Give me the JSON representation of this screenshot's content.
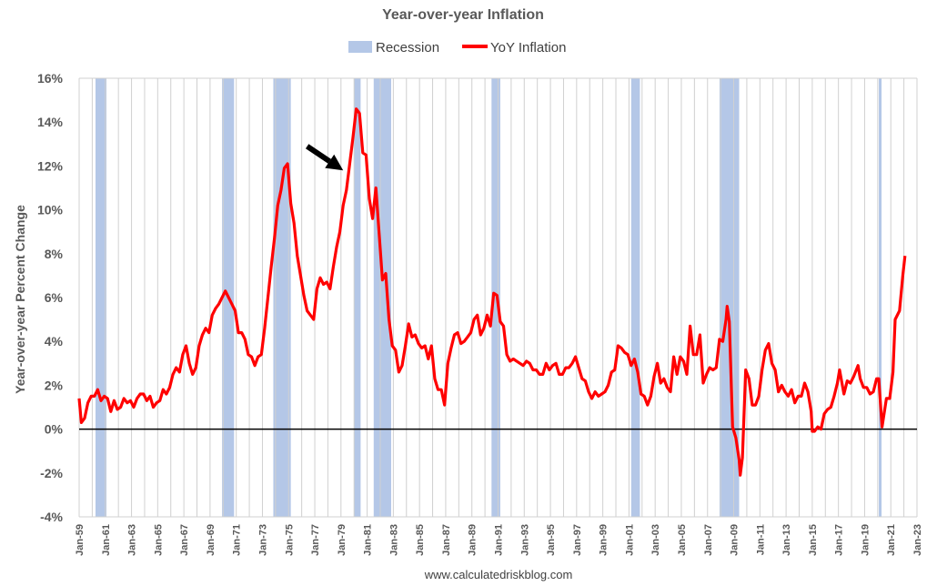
{
  "chart_data": {
    "type": "line",
    "title": "Year-over-year Inflation",
    "ylabel": "Year-over-year Percent Change",
    "xlabel": "",
    "source": "www.calculatedriskblog.com",
    "ylim": [
      -4,
      16
    ],
    "xlim": [
      "1959-01",
      "2023-01"
    ],
    "grid": "vertical-yearly",
    "legend_placement": "top-center",
    "y_ticks": [
      "-4%",
      "-2%",
      "0%",
      "2%",
      "4%",
      "6%",
      "8%",
      "10%",
      "12%",
      "14%",
      "16%"
    ],
    "x_ticks": [
      "Jan-59",
      "Jan-61",
      "Jan-63",
      "Jan-65",
      "Jan-67",
      "Jan-69",
      "Jan-71",
      "Jan-73",
      "Jan-75",
      "Jan-77",
      "Jan-79",
      "Jan-81",
      "Jan-83",
      "Jan-85",
      "Jan-87",
      "Jan-89",
      "Jan-91",
      "Jan-93",
      "Jan-95",
      "Jan-97",
      "Jan-99",
      "Jan-01",
      "Jan-03",
      "Jan-05",
      "Jan-07",
      "Jan-09",
      "Jan-11",
      "Jan-13",
      "Jan-15",
      "Jan-17",
      "Jan-19",
      "Jan-21",
      "Jan-23"
    ],
    "legend": [
      {
        "name": "Recession",
        "color": "#b4c7e7"
      },
      {
        "name": "YoY Inflation",
        "color": "#ff0000"
      }
    ],
    "recessions": [
      {
        "start": "1960-04",
        "end": "1961-02"
      },
      {
        "start": "1969-12",
        "end": "1970-11"
      },
      {
        "start": "1973-11",
        "end": "1975-03"
      },
      {
        "start": "1980-01",
        "end": "1980-07"
      },
      {
        "start": "1981-07",
        "end": "1982-11"
      },
      {
        "start": "1990-07",
        "end": "1991-03"
      },
      {
        "start": "2001-03",
        "end": "2001-11"
      },
      {
        "start": "2007-12",
        "end": "2009-06"
      },
      {
        "start": "2020-02",
        "end": "2020-04"
      }
    ],
    "series": [
      {
        "name": "YoY Inflation",
        "color": "#ff0000",
        "points": [
          [
            "1959-01",
            1.4
          ],
          [
            "1959-03",
            0.3
          ],
          [
            "1959-06",
            0.5
          ],
          [
            "1959-09",
            1.2
          ],
          [
            "1959-12",
            1.5
          ],
          [
            "1960-03",
            1.5
          ],
          [
            "1960-06",
            1.8
          ],
          [
            "1960-09",
            1.3
          ],
          [
            "1960-12",
            1.5
          ],
          [
            "1961-03",
            1.4
          ],
          [
            "1961-06",
            0.8
          ],
          [
            "1961-09",
            1.3
          ],
          [
            "1961-12",
            0.9
          ],
          [
            "1962-03",
            1.0
          ],
          [
            "1962-06",
            1.4
          ],
          [
            "1962-09",
            1.2
          ],
          [
            "1962-12",
            1.3
          ],
          [
            "1963-03",
            1.0
          ],
          [
            "1963-06",
            1.4
          ],
          [
            "1963-09",
            1.6
          ],
          [
            "1963-12",
            1.6
          ],
          [
            "1964-03",
            1.3
          ],
          [
            "1964-06",
            1.5
          ],
          [
            "1964-09",
            1.0
          ],
          [
            "1964-12",
            1.2
          ],
          [
            "1965-03",
            1.3
          ],
          [
            "1965-06",
            1.8
          ],
          [
            "1965-09",
            1.6
          ],
          [
            "1965-12",
            1.9
          ],
          [
            "1966-03",
            2.5
          ],
          [
            "1966-06",
            2.8
          ],
          [
            "1966-09",
            2.6
          ],
          [
            "1966-12",
            3.4
          ],
          [
            "1967-03",
            3.8
          ],
          [
            "1967-06",
            3.0
          ],
          [
            "1967-09",
            2.5
          ],
          [
            "1967-12",
            2.8
          ],
          [
            "1968-03",
            3.8
          ],
          [
            "1968-06",
            4.3
          ],
          [
            "1968-09",
            4.6
          ],
          [
            "1968-12",
            4.4
          ],
          [
            "1969-03",
            5.2
          ],
          [
            "1969-06",
            5.5
          ],
          [
            "1969-09",
            5.7
          ],
          [
            "1969-12",
            6.0
          ],
          [
            "1970-03",
            6.3
          ],
          [
            "1970-06",
            6.0
          ],
          [
            "1970-09",
            5.7
          ],
          [
            "1970-12",
            5.4
          ],
          [
            "1971-03",
            4.4
          ],
          [
            "1971-06",
            4.4
          ],
          [
            "1971-09",
            4.1
          ],
          [
            "1971-12",
            3.4
          ],
          [
            "1972-03",
            3.3
          ],
          [
            "1972-06",
            2.9
          ],
          [
            "1972-09",
            3.3
          ],
          [
            "1972-12",
            3.4
          ],
          [
            "1973-03",
            4.6
          ],
          [
            "1973-06",
            6.0
          ],
          [
            "1973-09",
            7.4
          ],
          [
            "1973-12",
            8.7
          ],
          [
            "1974-03",
            10.2
          ],
          [
            "1974-06",
            10.9
          ],
          [
            "1974-09",
            11.9
          ],
          [
            "1974-12",
            12.1
          ],
          [
            "1975-03",
            10.3
          ],
          [
            "1975-06",
            9.4
          ],
          [
            "1975-09",
            7.9
          ],
          [
            "1975-12",
            7.0
          ],
          [
            "1976-03",
            6.1
          ],
          [
            "1976-06",
            5.4
          ],
          [
            "1976-09",
            5.2
          ],
          [
            "1976-12",
            5.0
          ],
          [
            "1977-03",
            6.4
          ],
          [
            "1977-06",
            6.9
          ],
          [
            "1977-09",
            6.6
          ],
          [
            "1977-12",
            6.7
          ],
          [
            "1978-03",
            6.4
          ],
          [
            "1978-06",
            7.4
          ],
          [
            "1978-09",
            8.3
          ],
          [
            "1978-12",
            9.0
          ],
          [
            "1979-03",
            10.2
          ],
          [
            "1979-06",
            10.9
          ],
          [
            "1979-09",
            12.1
          ],
          [
            "1979-12",
            13.3
          ],
          [
            "1980-03",
            14.6
          ],
          [
            "1980-06",
            14.4
          ],
          [
            "1980-09",
            12.6
          ],
          [
            "1980-12",
            12.5
          ],
          [
            "1981-03",
            10.5
          ],
          [
            "1981-06",
            9.6
          ],
          [
            "1981-09",
            11.0
          ],
          [
            "1981-12",
            8.9
          ],
          [
            "1982-03",
            6.8
          ],
          [
            "1982-06",
            7.1
          ],
          [
            "1982-09",
            5.0
          ],
          [
            "1982-12",
            3.8
          ],
          [
            "1983-03",
            3.6
          ],
          [
            "1983-06",
            2.6
          ],
          [
            "1983-09",
            2.9
          ],
          [
            "1983-12",
            3.8
          ],
          [
            "1984-03",
            4.8
          ],
          [
            "1984-06",
            4.2
          ],
          [
            "1984-09",
            4.3
          ],
          [
            "1984-12",
            3.9
          ],
          [
            "1985-03",
            3.7
          ],
          [
            "1985-06",
            3.8
          ],
          [
            "1985-09",
            3.2
          ],
          [
            "1985-12",
            3.8
          ],
          [
            "1986-03",
            2.3
          ],
          [
            "1986-06",
            1.8
          ],
          [
            "1986-09",
            1.8
          ],
          [
            "1986-12",
            1.1
          ],
          [
            "1987-03",
            3.0
          ],
          [
            "1987-06",
            3.7
          ],
          [
            "1987-09",
            4.3
          ],
          [
            "1987-12",
            4.4
          ],
          [
            "1988-03",
            3.9
          ],
          [
            "1988-06",
            4.0
          ],
          [
            "1988-09",
            4.2
          ],
          [
            "1988-12",
            4.4
          ],
          [
            "1989-03",
            5.0
          ],
          [
            "1989-06",
            5.2
          ],
          [
            "1989-09",
            4.3
          ],
          [
            "1989-12",
            4.6
          ],
          [
            "1990-03",
            5.2
          ],
          [
            "1990-06",
            4.7
          ],
          [
            "1990-09",
            6.2
          ],
          [
            "1990-12",
            6.1
          ],
          [
            "1991-03",
            4.9
          ],
          [
            "1991-06",
            4.7
          ],
          [
            "1991-09",
            3.4
          ],
          [
            "1991-12",
            3.1
          ],
          [
            "1992-03",
            3.2
          ],
          [
            "1992-06",
            3.1
          ],
          [
            "1992-09",
            3.0
          ],
          [
            "1992-12",
            2.9
          ],
          [
            "1993-03",
            3.1
          ],
          [
            "1993-06",
            3.0
          ],
          [
            "1993-09",
            2.7
          ],
          [
            "1993-12",
            2.7
          ],
          [
            "1994-03",
            2.5
          ],
          [
            "1994-06",
            2.5
          ],
          [
            "1994-09",
            3.0
          ],
          [
            "1994-12",
            2.7
          ],
          [
            "1995-03",
            2.9
          ],
          [
            "1995-06",
            3.0
          ],
          [
            "1995-09",
            2.5
          ],
          [
            "1995-12",
            2.5
          ],
          [
            "1996-03",
            2.8
          ],
          [
            "1996-06",
            2.8
          ],
          [
            "1996-09",
            3.0
          ],
          [
            "1996-12",
            3.3
          ],
          [
            "1997-03",
            2.8
          ],
          [
            "1997-06",
            2.3
          ],
          [
            "1997-09",
            2.2
          ],
          [
            "1997-12",
            1.7
          ],
          [
            "1998-03",
            1.4
          ],
          [
            "1998-06",
            1.7
          ],
          [
            "1998-09",
            1.5
          ],
          [
            "1998-12",
            1.6
          ],
          [
            "1999-03",
            1.7
          ],
          [
            "1999-06",
            2.0
          ],
          [
            "1999-09",
            2.6
          ],
          [
            "1999-12",
            2.7
          ],
          [
            "2000-03",
            3.8
          ],
          [
            "2000-06",
            3.7
          ],
          [
            "2000-09",
            3.5
          ],
          [
            "2000-12",
            3.4
          ],
          [
            "2001-03",
            2.9
          ],
          [
            "2001-06",
            3.2
          ],
          [
            "2001-09",
            2.6
          ],
          [
            "2001-12",
            1.6
          ],
          [
            "2002-03",
            1.5
          ],
          [
            "2002-06",
            1.1
          ],
          [
            "2002-09",
            1.5
          ],
          [
            "2002-12",
            2.4
          ],
          [
            "2003-03",
            3.0
          ],
          [
            "2003-06",
            2.1
          ],
          [
            "2003-09",
            2.3
          ],
          [
            "2003-12",
            1.9
          ],
          [
            "2004-03",
            1.7
          ],
          [
            "2004-06",
            3.3
          ],
          [
            "2004-09",
            2.5
          ],
          [
            "2004-12",
            3.3
          ],
          [
            "2005-03",
            3.1
          ],
          [
            "2005-06",
            2.5
          ],
          [
            "2005-09",
            4.7
          ],
          [
            "2005-12",
            3.4
          ],
          [
            "2006-03",
            3.4
          ],
          [
            "2006-06",
            4.3
          ],
          [
            "2006-09",
            2.1
          ],
          [
            "2006-12",
            2.5
          ],
          [
            "2007-03",
            2.8
          ],
          [
            "2007-06",
            2.7
          ],
          [
            "2007-09",
            2.8
          ],
          [
            "2007-12",
            4.1
          ],
          [
            "2008-03",
            4.0
          ],
          [
            "2008-06",
            5.0
          ],
          [
            "2008-07",
            5.6
          ],
          [
            "2008-09",
            4.9
          ],
          [
            "2008-12",
            0.1
          ],
          [
            "2009-03",
            -0.4
          ],
          [
            "2009-06",
            -1.4
          ],
          [
            "2009-07",
            -2.1
          ],
          [
            "2009-09",
            -1.3
          ],
          [
            "2009-12",
            2.7
          ],
          [
            "2010-03",
            2.3
          ],
          [
            "2010-06",
            1.1
          ],
          [
            "2010-09",
            1.1
          ],
          [
            "2010-12",
            1.5
          ],
          [
            "2011-03",
            2.7
          ],
          [
            "2011-06",
            3.6
          ],
          [
            "2011-09",
            3.9
          ],
          [
            "2011-12",
            3.0
          ],
          [
            "2012-03",
            2.7
          ],
          [
            "2012-06",
            1.7
          ],
          [
            "2012-09",
            2.0
          ],
          [
            "2012-12",
            1.7
          ],
          [
            "2013-03",
            1.5
          ],
          [
            "2013-06",
            1.8
          ],
          [
            "2013-09",
            1.2
          ],
          [
            "2013-12",
            1.5
          ],
          [
            "2014-03",
            1.5
          ],
          [
            "2014-06",
            2.1
          ],
          [
            "2014-09",
            1.7
          ],
          [
            "2014-12",
            0.8
          ],
          [
            "2015-01",
            -0.1
          ],
          [
            "2015-03",
            -0.1
          ],
          [
            "2015-06",
            0.1
          ],
          [
            "2015-09",
            0.0
          ],
          [
            "2015-12",
            0.7
          ],
          [
            "2016-03",
            0.9
          ],
          [
            "2016-06",
            1.0
          ],
          [
            "2016-09",
            1.5
          ],
          [
            "2016-12",
            2.1
          ],
          [
            "2017-02",
            2.7
          ],
          [
            "2017-06",
            1.6
          ],
          [
            "2017-09",
            2.2
          ],
          [
            "2017-12",
            2.1
          ],
          [
            "2018-03",
            2.4
          ],
          [
            "2018-07",
            2.9
          ],
          [
            "2018-09",
            2.3
          ],
          [
            "2018-12",
            1.9
          ],
          [
            "2019-03",
            1.9
          ],
          [
            "2019-06",
            1.6
          ],
          [
            "2019-09",
            1.7
          ],
          [
            "2019-12",
            2.3
          ],
          [
            "2020-02",
            2.3
          ],
          [
            "2020-05",
            0.1
          ],
          [
            "2020-09",
            1.4
          ],
          [
            "2020-12",
            1.4
          ],
          [
            "2021-03",
            2.6
          ],
          [
            "2021-05",
            5.0
          ],
          [
            "2021-09",
            5.4
          ],
          [
            "2021-12",
            7.0
          ],
          [
            "2022-02",
            7.9
          ]
        ]
      }
    ]
  },
  "annotation": {
    "type": "arrow",
    "color": "#000000",
    "start": [
      "1976-06",
      12.9
    ],
    "end": [
      "1979-03",
      11.8
    ]
  }
}
